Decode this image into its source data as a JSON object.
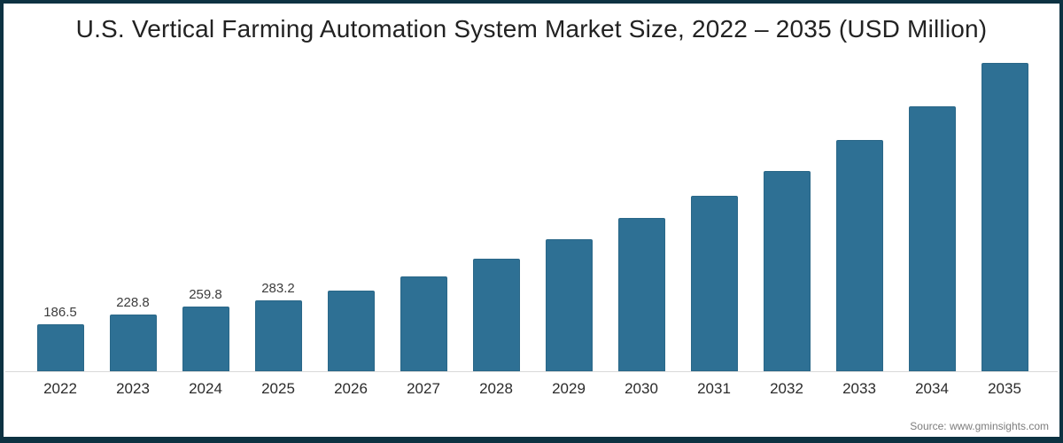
{
  "frame": {
    "border_color": "#0d3242",
    "background": "#ffffff"
  },
  "header": {
    "title": "U.S. Vertical Farming Automation System Market Size, 2022 – 2035 (USD Million)"
  },
  "footer": {
    "source": "Source: www.gminsights.com"
  },
  "chart_data": {
    "type": "bar",
    "title": "U.S. Vertical Farming Automation System Market Size, 2022 – 2035 (USD Million)",
    "xlabel": "",
    "ylabel": "",
    "units": "USD Million",
    "categories": [
      "2022",
      "2023",
      "2024",
      "2025",
      "2026",
      "2027",
      "2028",
      "2029",
      "2030",
      "2031",
      "2032",
      "2033",
      "2034",
      "2035"
    ],
    "values": [
      186.5,
      228.8,
      259.8,
      283.2,
      323,
      380,
      451,
      529,
      614,
      703,
      802,
      927,
      1061,
      1235
    ],
    "value_labels": [
      "186.5",
      "228.8",
      "259.8",
      "283.2",
      "",
      "",
      "",
      "",
      "",
      "",
      "",
      "",
      "",
      ""
    ],
    "ylim": [
      0,
      1250
    ],
    "grid": false,
    "legend": "none",
    "y_axis_shown": false,
    "bar_color": "#2e7094",
    "axis_line_color": "#d9d9d9"
  }
}
